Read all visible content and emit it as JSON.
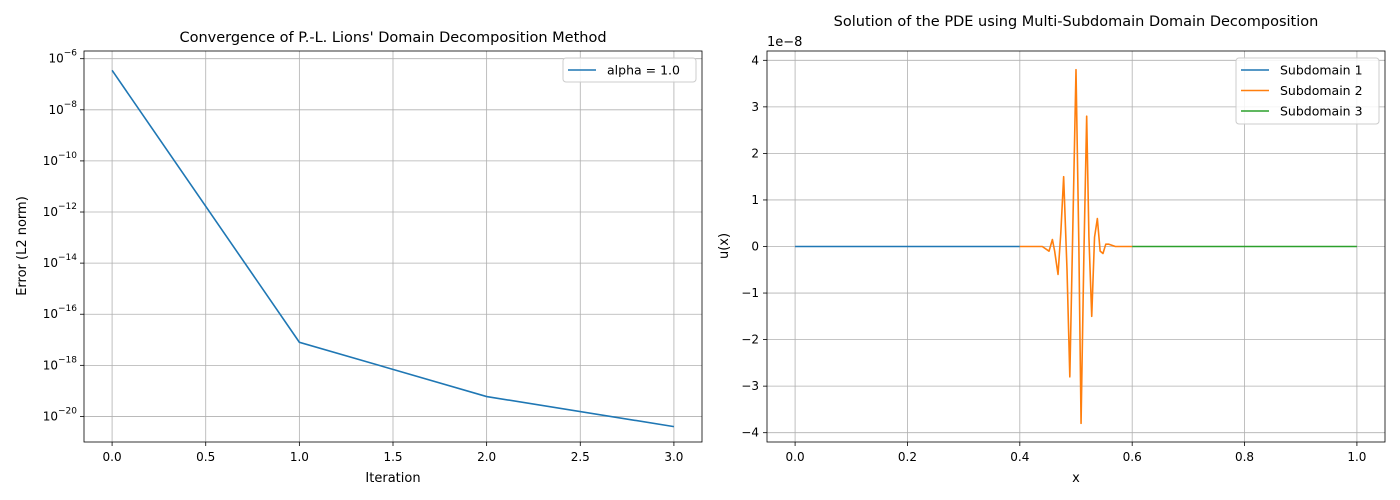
{
  "chart_data": [
    {
      "type": "line",
      "title": "Convergence of P.-L. Lions' Domain Decomposition Method",
      "xlabel": "Iteration",
      "ylabel": "Error (L2 norm)",
      "yscale": "log",
      "xlim": [
        -0.15,
        3.15
      ],
      "ylim": [
        1e-21,
        2e-06
      ],
      "xticks": [
        0,
        0.5,
        1,
        1.5,
        2,
        2.5,
        3
      ],
      "xtick_labels": [
        "0.0",
        "0.5",
        "1.0",
        "1.5",
        "2.0",
        "2.5",
        "3.0"
      ],
      "ytick_exponents": [
        -20,
        -18,
        -16,
        -14,
        -12,
        -10,
        -8,
        -6
      ],
      "ytick_base": "10",
      "ytick_minus": "−",
      "grid": true,
      "legend": "upper right",
      "series": [
        {
          "name": "alpha = 1.0",
          "color": "#1f77b4",
          "x": [
            0,
            1,
            2,
            3
          ],
          "y": [
            3.5e-07,
            8e-18,
            6e-20,
            4e-21
          ]
        }
      ]
    },
    {
      "type": "line",
      "title": "Solution of the PDE using Multi-Subdomain Domain Decomposition",
      "xlabel": "x",
      "ylabel": "u(x)",
      "offset_text": "1e−8",
      "xlim": [
        -0.05,
        1.05
      ],
      "ylim": [
        -4.2,
        4.2
      ],
      "value_scale": "1e-8",
      "xticks": [
        0,
        0.2,
        0.4,
        0.6,
        0.8,
        1.0
      ],
      "xtick_labels": [
        "0.0",
        "0.2",
        "0.4",
        "0.6",
        "0.8",
        "1.0"
      ],
      "yticks": [
        -4,
        -3,
        -2,
        -1,
        0,
        1,
        2,
        3,
        4
      ],
      "ytick_labels": [
        "−4",
        "−3",
        "−2",
        "−1",
        "0",
        "1",
        "2",
        "3",
        "4"
      ],
      "grid": true,
      "legend": "upper right",
      "series": [
        {
          "name": "Subdomain 1",
          "color": "#1f77b4",
          "x": [
            0.0,
            0.4
          ],
          "y": [
            0,
            0
          ]
        },
        {
          "name": "Subdomain 2",
          "color": "#ff7f0e",
          "x": [
            0.4,
            0.44,
            0.452,
            0.458,
            0.462,
            0.468,
            0.473,
            0.478,
            0.484,
            0.489,
            0.494,
            0.5,
            0.505,
            0.509,
            0.514,
            0.519,
            0.523,
            0.528,
            0.533,
            0.538,
            0.543,
            0.548,
            0.553,
            0.558,
            0.57,
            0.6
          ],
          "y": [
            0,
            0,
            -0.1,
            0.15,
            -0.1,
            -0.6,
            0.3,
            1.5,
            -0.5,
            -2.8,
            0.2,
            3.8,
            0.1,
            -3.8,
            -0.2,
            2.8,
            0.2,
            -1.5,
            0.2,
            0.6,
            -0.1,
            -0.15,
            0.05,
            0.05,
            0,
            0
          ]
        },
        {
          "name": "Subdomain 3",
          "color": "#2ca02c",
          "x": [
            0.6,
            1.0
          ],
          "y": [
            0,
            0
          ]
        }
      ]
    }
  ]
}
